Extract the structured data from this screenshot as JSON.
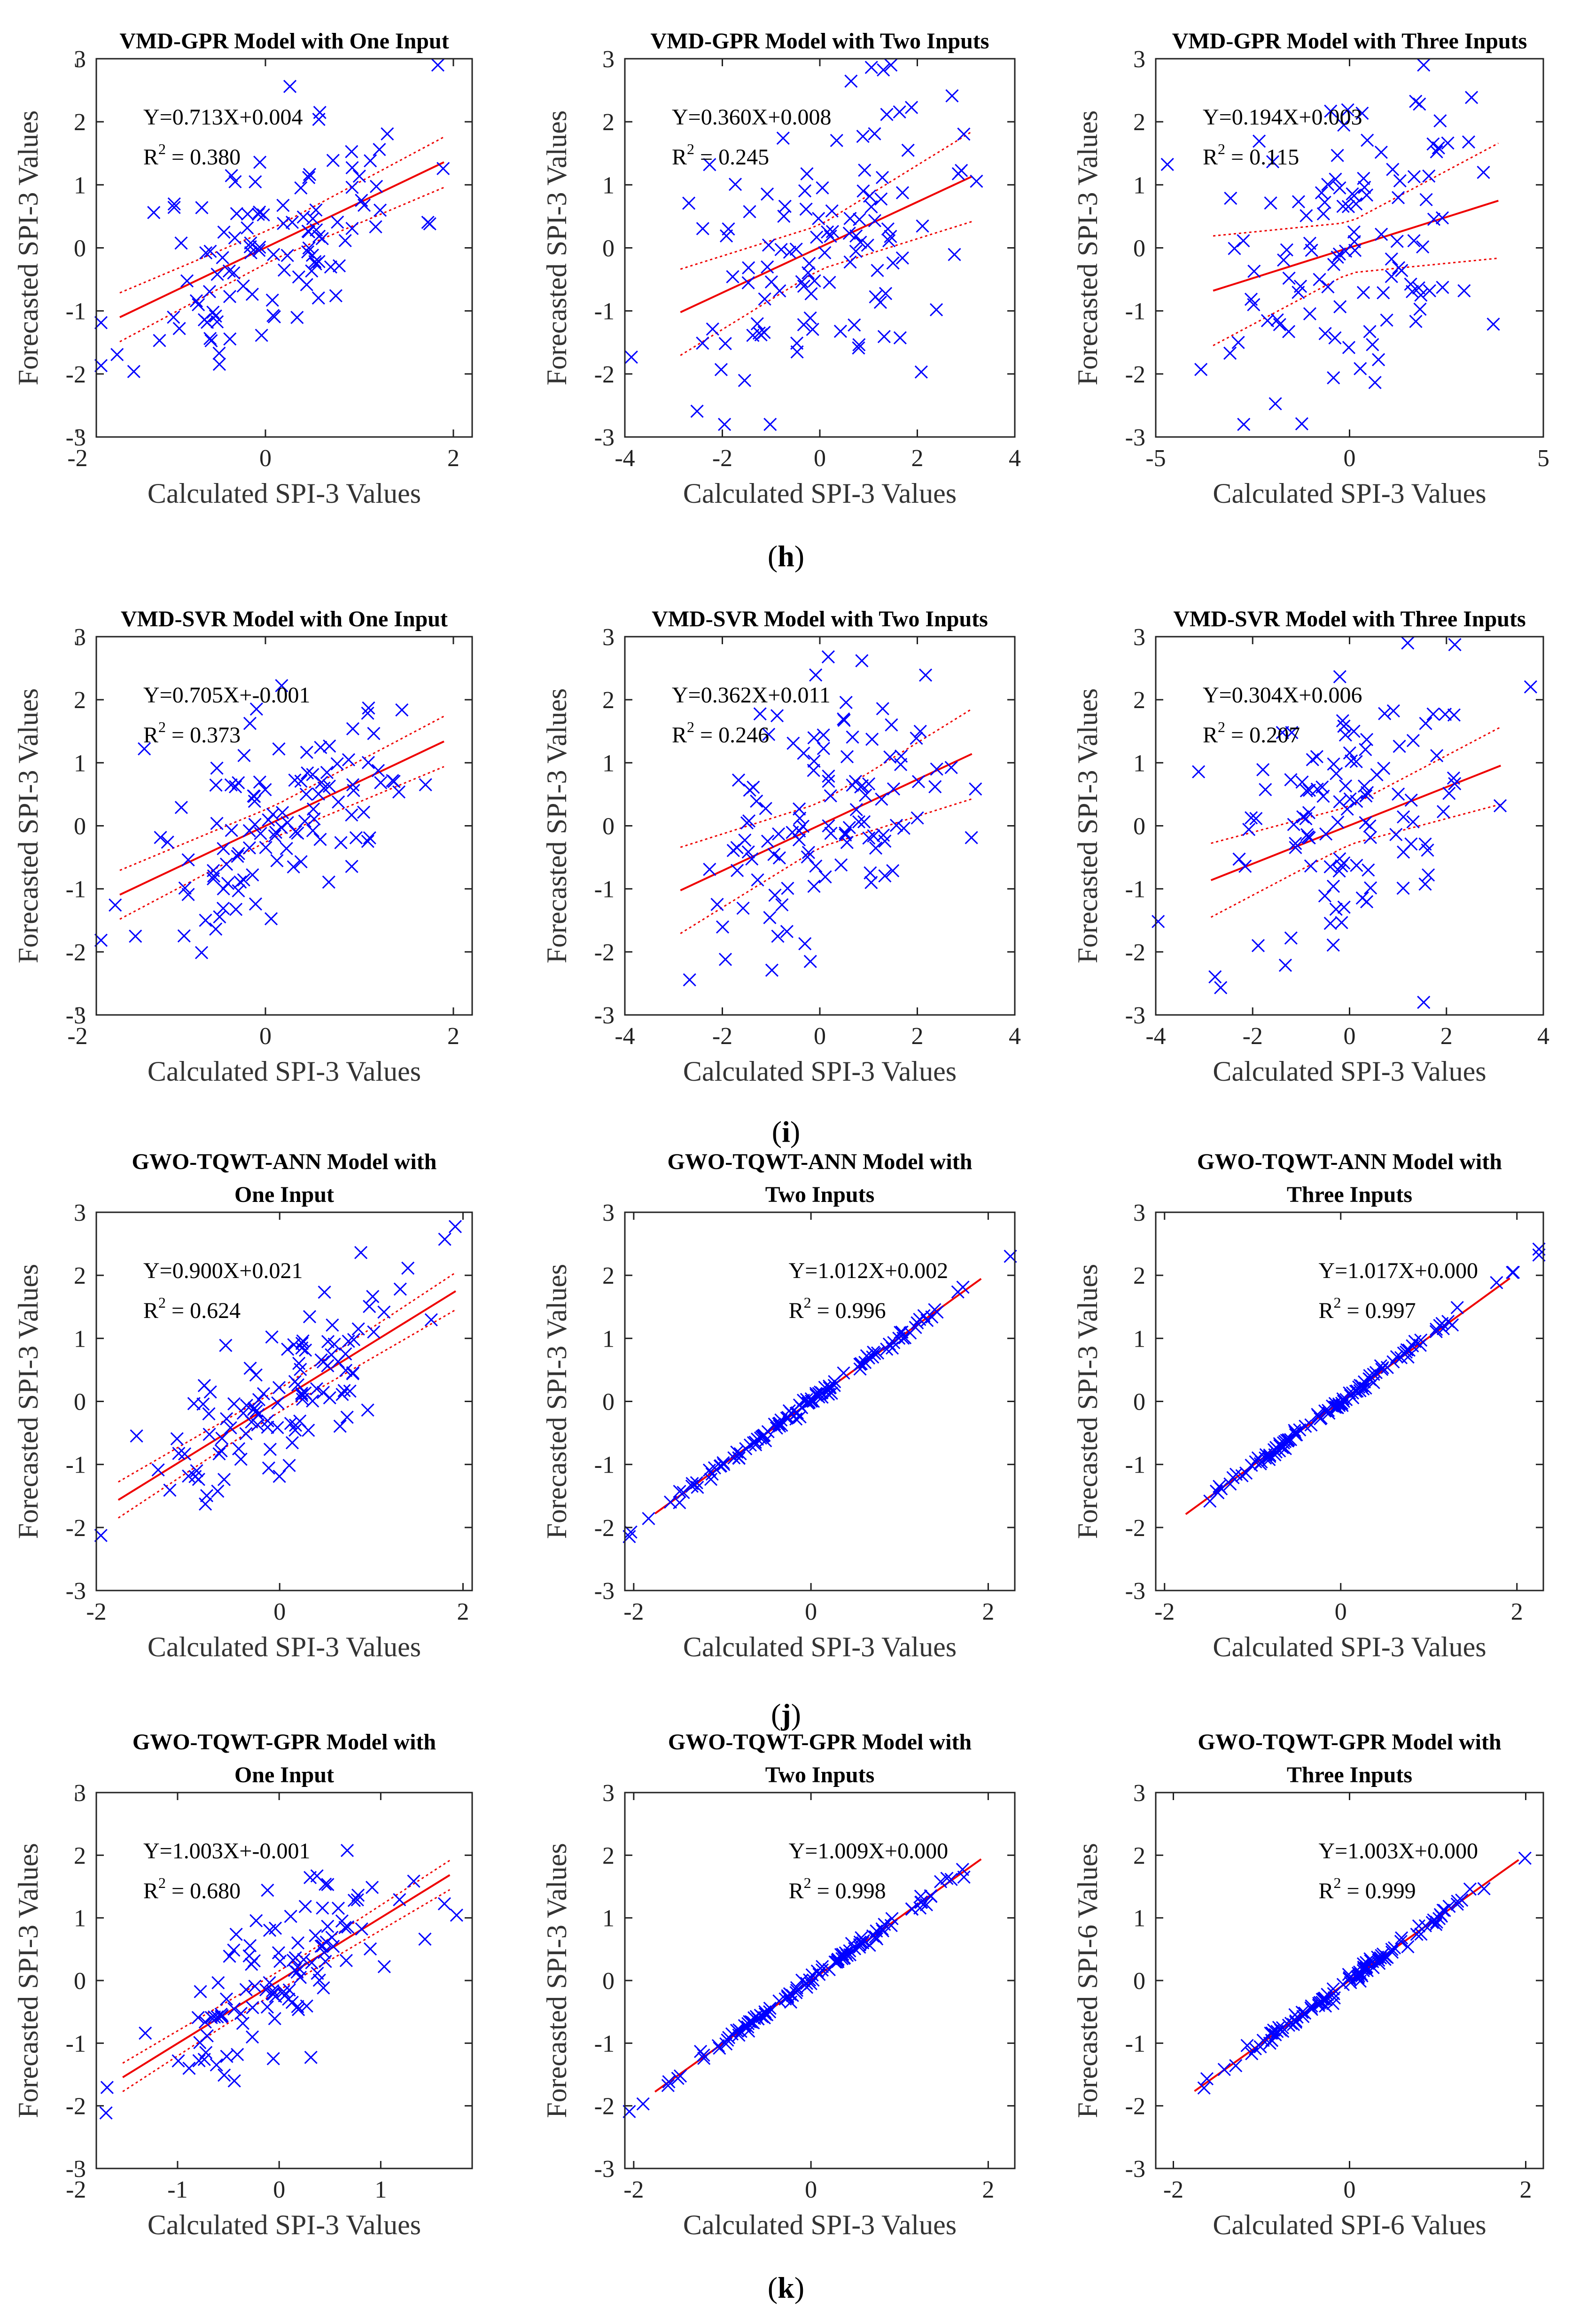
{
  "figure": {
    "panel_labels": [
      "h",
      "i",
      "j",
      "k"
    ]
  },
  "chart_data": [
    {
      "type": "scatter",
      "title": [
        "VMD-GPR Model with One Input"
      ],
      "xlabel": "Calculated SPI-3 Values",
      "ylabel": "Forecasted SPI-3 Values",
      "xlim": [
        -1.8,
        2.2
      ],
      "ylim": [
        -3,
        3
      ],
      "xticks": [
        -2,
        0,
        2
      ],
      "yticks": [
        -3,
        -2,
        -1,
        0,
        1,
        2,
        3
      ],
      "equation": "Y=0.713X+0.004",
      "r2": "0.380",
      "slope": 0.713,
      "intercept": 0.004,
      "ci": 0.25,
      "n": 110,
      "seed": 11,
      "xsd": 0.75,
      "xmean": 0.1
    },
    {
      "type": "scatter",
      "title": [
        "VMD-GPR Model with Two Inputs"
      ],
      "xlabel": "Calculated SPI-3 Values",
      "ylabel": "Forecasted SPI-3 Values",
      "xlim": [
        -4,
        4
      ],
      "ylim": [
        -3,
        3
      ],
      "xticks": [
        -4,
        -2,
        0,
        2,
        4
      ],
      "yticks": [
        -3,
        -2,
        -1,
        0,
        1,
        2,
        3
      ],
      "equation": "Y=0.360X+0.008",
      "r2": "0.245",
      "slope": 0.36,
      "intercept": 0.008,
      "ci": 0.35,
      "n": 110,
      "seed": 22,
      "xsd": 1.3,
      "xmean": 0.0
    },
    {
      "type": "scatter",
      "title": [
        "VMD-GPR Model with Three Inputs"
      ],
      "xlabel": "Calculated SPI-3 Values",
      "ylabel": "Forecasted SPI-3 Values",
      "xlim": [
        -5,
        5
      ],
      "ylim": [
        -3,
        3
      ],
      "xticks": [
        -5,
        0,
        5
      ],
      "yticks": [
        -3,
        -2,
        -1,
        0,
        1,
        2,
        3
      ],
      "equation": "Y=0.194X+0.003",
      "r2": "0.115",
      "slope": 0.194,
      "intercept": 0.003,
      "ci": 0.4,
      "n": 110,
      "seed": 33,
      "xsd": 1.6,
      "xmean": 0.0
    },
    {
      "type": "scatter",
      "title": [
        "VMD-SVR Model with One Input"
      ],
      "xlabel": "Calculated SPI-3 Values",
      "ylabel": "Forecasted SPI-3 Values",
      "xlim": [
        -1.8,
        2.2
      ],
      "ylim": [
        -3,
        3
      ],
      "xticks": [
        -2,
        0,
        2
      ],
      "yticks": [
        -3,
        -2,
        -1,
        0,
        1,
        2,
        3
      ],
      "equation": "Y=0.705X+-0.001",
      "r2": "0.373",
      "slope": 0.705,
      "intercept": -0.001,
      "ci": 0.25,
      "n": 110,
      "seed": 44,
      "xsd": 0.75,
      "xmean": 0.1
    },
    {
      "type": "scatter",
      "title": [
        "VMD-SVR Model with Two Inputs"
      ],
      "xlabel": "Calculated SPI-3 Values",
      "ylabel": "Forecasted SPI-3 Values",
      "xlim": [
        -4,
        4
      ],
      "ylim": [
        -3,
        3
      ],
      "xticks": [
        -4,
        -2,
        0,
        2,
        4
      ],
      "yticks": [
        -3,
        -2,
        -1,
        0,
        1,
        2,
        3
      ],
      "equation": "Y=0.362X+0.011",
      "r2": "0.246",
      "slope": 0.362,
      "intercept": 0.011,
      "ci": 0.35,
      "n": 110,
      "seed": 55,
      "xsd": 1.3,
      "xmean": 0.0
    },
    {
      "type": "scatter",
      "title": [
        "VMD-SVR Model with Three Inputs"
      ],
      "xlabel": "Calculated SPI-3 Values",
      "ylabel": "Forecasted SPI-3 Values",
      "xlim": [
        -4,
        4
      ],
      "ylim": [
        -3,
        3
      ],
      "xticks": [
        -4,
        -2,
        0,
        2,
        4
      ],
      "yticks": [
        -3,
        -2,
        -1,
        0,
        1,
        2,
        3
      ],
      "equation": "Y=0.304X+0.006",
      "r2": "0.207",
      "slope": 0.304,
      "intercept": 0.006,
      "ci": 0.3,
      "n": 110,
      "seed": 66,
      "xsd": 1.3,
      "xmean": 0.0
    },
    {
      "type": "scatter",
      "title": [
        "GWO-TQWT-ANN Model with",
        "One Input"
      ],
      "xlabel": "Calculated SPI-3 Values",
      "ylabel": "Forecasted SPI-3 Values",
      "xlim": [
        -2,
        2.1
      ],
      "ylim": [
        -3,
        3
      ],
      "xticks": [
        -2,
        0,
        2
      ],
      "yticks": [
        -3,
        -2,
        -1,
        0,
        1,
        2,
        3
      ],
      "equation": "Y=0.900X+0.021",
      "r2": "0.624",
      "slope": 0.9,
      "intercept": 0.021,
      "ci": 0.18,
      "n": 110,
      "seed": 77,
      "xsd": 0.8,
      "xmean": 0.0
    },
    {
      "type": "scatter",
      "title": [
        "GWO-TQWT-ANN Model with",
        "Two Inputs"
      ],
      "xlabel": "Calculated SPI-3 Values",
      "ylabel": "Forecasted SPI-3 Values",
      "xlim": [
        -2.1,
        2.3
      ],
      "ylim": [
        -3,
        3
      ],
      "xticks": [
        -2,
        0,
        2
      ],
      "yticks": [
        -3,
        -2,
        -1,
        0,
        1,
        2,
        3
      ],
      "equation": "Y=1.012X+0.002",
      "r2": "0.996",
      "slope": 1.012,
      "intercept": 0.002,
      "ci": 0.03,
      "n": 110,
      "seed": 88,
      "xsd": 0.8,
      "xmean": 0.0
    },
    {
      "type": "scatter",
      "title": [
        "GWO-TQWT-ANN Model with",
        "Three Inputs"
      ],
      "xlabel": "Calculated SPI-3 Values",
      "ylabel": "Forecasted SPI-3 Values",
      "xlim": [
        -2.1,
        2.3
      ],
      "ylim": [
        -3,
        3
      ],
      "xticks": [
        -2,
        0,
        2
      ],
      "yticks": [
        -3,
        -2,
        -1,
        0,
        1,
        2,
        3
      ],
      "equation": "Y=1.017X+0.000",
      "r2": "0.997",
      "slope": 1.017,
      "intercept": 0.0,
      "ci": 0.03,
      "n": 110,
      "seed": 99,
      "xsd": 0.8,
      "xmean": 0.0
    },
    {
      "type": "scatter",
      "title": [
        "GWO-TQWT-GPR Model with",
        "One Input"
      ],
      "xlabel": "Calculated SPI-3 Values",
      "ylabel": "Forecasted SPI-3 Values",
      "xlim": [
        -1.8,
        1.9
      ],
      "ylim": [
        -3,
        3
      ],
      "xticks": [
        -2,
        -1,
        0,
        1
      ],
      "yticks": [
        -3,
        -2,
        -1,
        0,
        1,
        2,
        3
      ],
      "equation": "Y=1.003X+-0.001",
      "r2": "0.680",
      "slope": 1.003,
      "intercept": -0.001,
      "ci": 0.15,
      "n": 110,
      "seed": 111,
      "xsd": 0.7,
      "xmean": 0.0
    },
    {
      "type": "scatter",
      "title": [
        "GWO-TQWT-GPR Model with",
        "Two Inputs"
      ],
      "xlabel": "Calculated SPI-3 Values",
      "ylabel": "Forecasted SPI-3 Values",
      "xlim": [
        -2.1,
        2.3
      ],
      "ylim": [
        -3,
        3
      ],
      "xticks": [
        -2,
        0,
        2
      ],
      "yticks": [
        -3,
        -2,
        -1,
        0,
        1,
        2,
        3
      ],
      "equation": "Y=1.009X+0.000",
      "r2": "0.998",
      "slope": 1.009,
      "intercept": 0.0,
      "ci": 0.03,
      "n": 110,
      "seed": 122,
      "xsd": 0.8,
      "xmean": 0.0
    },
    {
      "type": "scatter",
      "title": [
        "GWO-TQWT-GPR Model with",
        "Three Inputs"
      ],
      "xlabel": "Calculated SPI-6 Values",
      "ylabel": "Forecasted SPI-6 Values",
      "xlim": [
        -2.2,
        2.2
      ],
      "ylim": [
        -3,
        3
      ],
      "xticks": [
        -2,
        0,
        2
      ],
      "yticks": [
        -3,
        -2,
        -1,
        0,
        1,
        2,
        3
      ],
      "equation": "Y=1.003X+0.000",
      "r2": "0.999",
      "slope": 1.003,
      "intercept": 0.0,
      "ci": 0.03,
      "n": 110,
      "seed": 133,
      "xsd": 0.8,
      "xmean": 0.0
    }
  ]
}
